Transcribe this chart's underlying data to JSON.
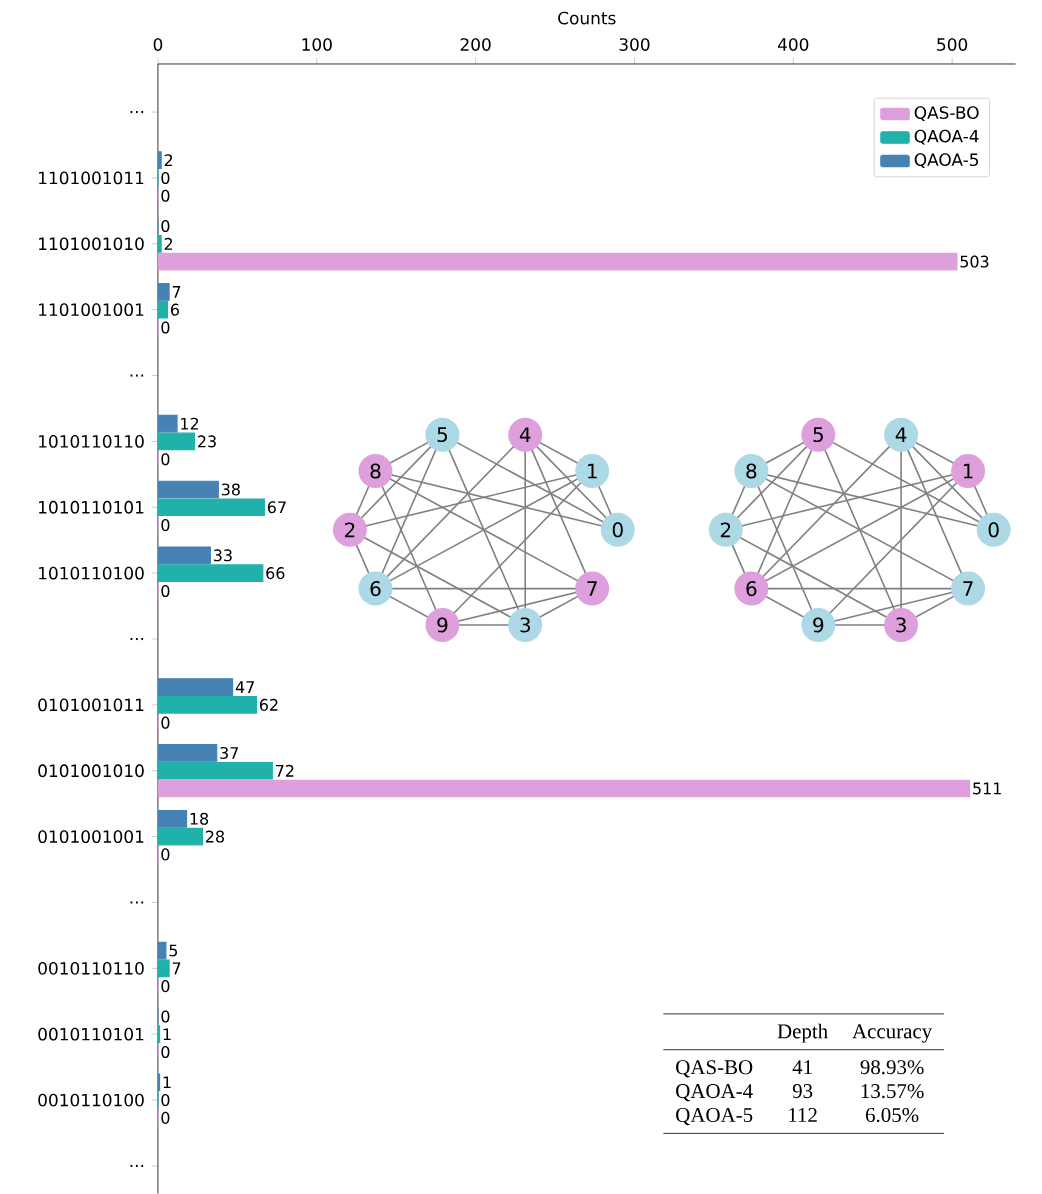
{
  "chart_data": {
    "type": "bar",
    "orientation": "horizontal",
    "xlabel": "Counts",
    "categories": [
      "...",
      "1101001011",
      "1101001010",
      "1101001001",
      "...",
      "1010110110",
      "1010110101",
      "1010110100",
      "...",
      "0101001011",
      "0101001010",
      "0101001001",
      "...",
      "0010110110",
      "0010110101",
      "0010110100",
      "..."
    ],
    "series": [
      {
        "name": "QAS-BO",
        "color": "#dda0dd",
        "values": [
          null,
          0,
          503,
          0,
          null,
          0,
          0,
          0,
          null,
          0,
          511,
          0,
          null,
          0,
          0,
          0,
          null
        ]
      },
      {
        "name": "QAOA-4",
        "color": "#20b2aa",
        "values": [
          null,
          0,
          2,
          6,
          null,
          23,
          67,
          66,
          null,
          62,
          72,
          28,
          null,
          7,
          1,
          0,
          null
        ]
      },
      {
        "name": "QAOA-5",
        "color": "#4682b4",
        "values": [
          null,
          2,
          0,
          7,
          null,
          12,
          38,
          33,
          null,
          47,
          37,
          18,
          null,
          5,
          0,
          1,
          null
        ]
      }
    ],
    "xlim": [
      0,
      540
    ],
    "xticks": [
      0,
      100,
      200,
      300,
      400,
      500
    ],
    "data_labels": true,
    "legend": "top right",
    "annotations": [
      "Depth",
      "Accuracy",
      "QAS-BO",
      "41",
      "98.93%",
      "QAOA-4",
      "93",
      "13.57%",
      "QAOA-5",
      "112",
      "6.05%",
      "5",
      "4",
      "1",
      "0",
      "7",
      "3",
      "9",
      "6",
      "2",
      "8",
      "5",
      "4",
      "1",
      "0",
      "7",
      "3",
      "9",
      "6",
      "2",
      "8"
    ]
  }
}
